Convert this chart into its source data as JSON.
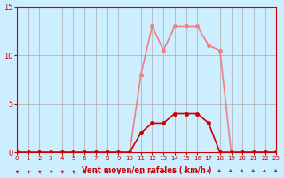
{
  "x": [
    0,
    1,
    2,
    3,
    4,
    5,
    6,
    7,
    8,
    9,
    10,
    11,
    12,
    13,
    14,
    15,
    16,
    17,
    18,
    19,
    20,
    21,
    22,
    23
  ],
  "rafales": [
    0,
    0,
    0,
    0,
    0,
    0,
    0,
    0,
    0,
    0,
    0,
    8,
    13,
    10.5,
    13,
    13,
    13,
    11,
    10.5,
    0,
    0,
    0,
    0,
    0
  ],
  "moyen": [
    0,
    0,
    0,
    0,
    0,
    0,
    0,
    0,
    0,
    0,
    0,
    2,
    3,
    3,
    4,
    4,
    4,
    3,
    0,
    0,
    0,
    0,
    0,
    0
  ],
  "color_rafales": "#f08080",
  "color_moyen": "#cc0000",
  "bg_color": "#cceeff",
  "grid_color": "#aaaaaa",
  "xlabel": "Vent moyen/en rafales ( km/h )",
  "ylabel": "",
  "ylim": [
    0,
    15
  ],
  "xlim": [
    0,
    23
  ],
  "yticks": [
    0,
    5,
    10,
    15
  ],
  "xticks": [
    0,
    1,
    2,
    3,
    4,
    5,
    6,
    7,
    8,
    9,
    10,
    11,
    12,
    13,
    14,
    15,
    16,
    17,
    18,
    19,
    20,
    21,
    22,
    23
  ]
}
